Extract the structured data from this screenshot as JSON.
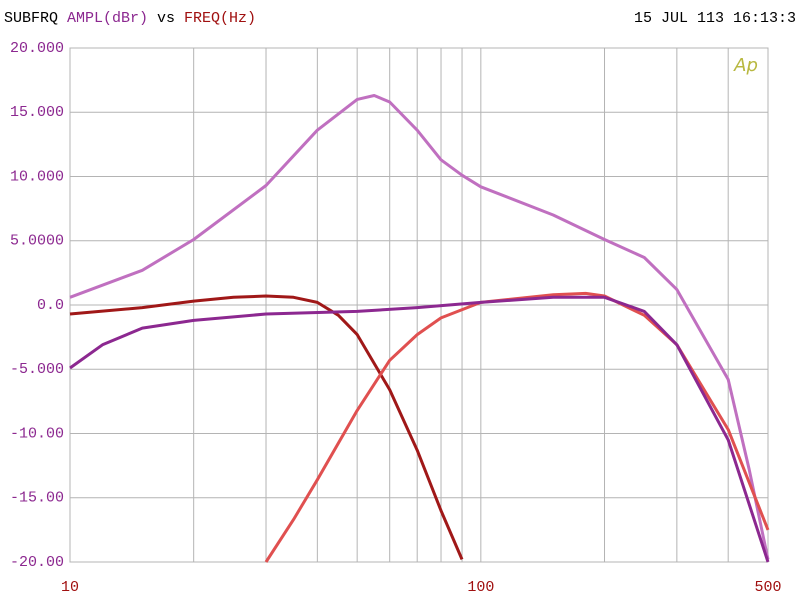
{
  "chart_data": {
    "type": "line",
    "title_parts": [
      {
        "text": "SUBFRQ",
        "color": "#000000"
      },
      {
        "text": "AMPL(dBr)",
        "color": "#8c2890"
      },
      {
        "text": "vs",
        "color": "#000000"
      },
      {
        "text": "FREQ(Hz)",
        "color": "#a01010"
      }
    ],
    "timestamp": "15 JUL 113 16:13:3",
    "logo": "Ap",
    "logo_color": "#b8b840",
    "xscale": "log",
    "xlim": [
      10,
      500
    ],
    "xticks": [
      10,
      100,
      500
    ],
    "x_minor_grid": [
      20,
      30,
      40,
      50,
      60,
      70,
      80,
      90,
      200,
      300,
      400
    ],
    "xtick_color": "#a01010",
    "ylim": [
      -20,
      20
    ],
    "yticks": [
      {
        "value": 20,
        "label": "20.000"
      },
      {
        "value": 15,
        "label": "15.000"
      },
      {
        "value": 10,
        "label": "10.000"
      },
      {
        "value": 5,
        "label": "5.0000"
      },
      {
        "value": 0,
        "label": "0.0"
      },
      {
        "value": -5,
        "label": "-5.000"
      },
      {
        "value": -10,
        "label": "-10.00"
      },
      {
        "value": -15,
        "label": "-15.00"
      },
      {
        "value": -20,
        "label": "-20.00"
      }
    ],
    "ytick_color": "#8c2890",
    "grid": true,
    "series": [
      {
        "color": "#c070c0",
        "x": [
          10,
          15,
          20,
          30,
          40,
          50,
          55,
          60,
          70,
          80,
          90,
          100,
          150,
          200,
          250,
          300,
          400,
          450,
          500
        ],
        "values": [
          0.6,
          2.7,
          5.1,
          9.3,
          13.6,
          16.0,
          16.3,
          15.8,
          13.6,
          11.3,
          10.1,
          9.2,
          7.0,
          5.1,
          3.7,
          1.2,
          -5.8,
          -12.8,
          -19.8
        ]
      },
      {
        "color": "#a01818",
        "x": [
          10,
          15,
          20,
          25,
          30,
          35,
          40,
          45,
          50,
          60,
          70,
          80,
          90
        ],
        "values": [
          -0.7,
          -0.2,
          0.3,
          0.6,
          0.7,
          0.6,
          0.2,
          -0.8,
          -2.3,
          -6.6,
          -11.3,
          -16.0,
          -19.8
        ]
      },
      {
        "color": "#e05050",
        "x": [
          30,
          35,
          40,
          50,
          60,
          70,
          80,
          100,
          150,
          180,
          200,
          250,
          300,
          400,
          500
        ],
        "values": [
          -20,
          -16.7,
          -13.6,
          -8.2,
          -4.3,
          -2.3,
          -1.0,
          0.2,
          0.8,
          0.9,
          0.7,
          -0.8,
          -3.1,
          -9.7,
          -17.5
        ]
      },
      {
        "color": "#8c2890",
        "x": [
          10,
          12,
          15,
          20,
          30,
          50,
          70,
          100,
          150,
          200,
          250,
          300,
          400,
          500
        ],
        "values": [
          -4.9,
          -3.1,
          -1.8,
          -1.2,
          -0.7,
          -0.5,
          -0.2,
          0.2,
          0.6,
          0.6,
          -0.5,
          -3.1,
          -10.5,
          -20
        ]
      }
    ]
  }
}
